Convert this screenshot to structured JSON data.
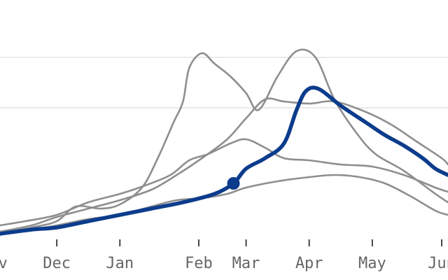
{
  "chart_data": {
    "type": "line",
    "x_unit": "month",
    "xlim": [
      10.1,
      17.2
    ],
    "ylim": [
      0,
      100
    ],
    "x_ticks": [
      {
        "x": 10,
        "label": "Nov"
      },
      {
        "x": 11,
        "label": "Dec"
      },
      {
        "x": 12,
        "label": "Jan"
      },
      {
        "x": 13.25,
        "label": "Feb"
      },
      {
        "x": 14.0,
        "label": "Mar"
      },
      {
        "x": 15.0,
        "label": "Apr"
      },
      {
        "x": 16.0,
        "label": "May"
      },
      {
        "x": 17.1,
        "label": "Jun"
      }
    ],
    "y_gridlines": [
      14,
      38
    ],
    "grid": true,
    "background_series": [
      {
        "points": [
          [
            10.1,
            98
          ],
          [
            10.6,
            95
          ],
          [
            11.0,
            92
          ],
          [
            11.3,
            85
          ],
          [
            11.7,
            86
          ],
          [
            12.0,
            84
          ],
          [
            12.35,
            76
          ],
          [
            12.6,
            62
          ],
          [
            12.85,
            45
          ],
          [
            13.0,
            35
          ],
          [
            13.1,
            19
          ],
          [
            13.3,
            12
          ],
          [
            13.5,
            17
          ],
          [
            13.75,
            23
          ],
          [
            14.0,
            31
          ],
          [
            14.2,
            39
          ],
          [
            14.5,
            23
          ],
          [
            14.8,
            11
          ],
          [
            15.1,
            14
          ],
          [
            15.4,
            34
          ],
          [
            15.75,
            50
          ],
          [
            16.05,
            60
          ],
          [
            16.5,
            68
          ],
          [
            17.0,
            79
          ],
          [
            17.2,
            83
          ]
        ],
        "color": "#8e8e8e"
      },
      {
        "points": [
          [
            10.1,
            94
          ],
          [
            10.5,
            92
          ],
          [
            11.0,
            89
          ],
          [
            11.5,
            83
          ],
          [
            12.0,
            79
          ],
          [
            12.4,
            75
          ],
          [
            12.8,
            70
          ],
          [
            13.1,
            63
          ],
          [
            13.4,
            60
          ],
          [
            13.75,
            55
          ],
          [
            14.0,
            53
          ],
          [
            14.3,
            57
          ],
          [
            14.6,
            62
          ],
          [
            15.0,
            63
          ],
          [
            15.5,
            65
          ],
          [
            16.0,
            66
          ],
          [
            16.5,
            70
          ],
          [
            17.0,
            76
          ],
          [
            17.2,
            78
          ]
        ],
        "color": "#8e8e8e"
      },
      {
        "points": [
          [
            10.1,
            97
          ],
          [
            10.6,
            94
          ],
          [
            11.0,
            90
          ],
          [
            11.5,
            86
          ],
          [
            12.0,
            82
          ],
          [
            12.5,
            77
          ],
          [
            12.9,
            70
          ],
          [
            13.3,
            62
          ],
          [
            13.7,
            53
          ],
          [
            14.0,
            43
          ],
          [
            14.3,
            34
          ],
          [
            14.6,
            35
          ],
          [
            15.0,
            36
          ],
          [
            15.4,
            35
          ],
          [
            15.9,
            40
          ],
          [
            16.3,
            46
          ],
          [
            16.7,
            54
          ],
          [
            17.1,
            62
          ],
          [
            17.2,
            65
          ]
        ],
        "color": "#8e8e8e"
      },
      {
        "points": [
          [
            10.1,
            98
          ],
          [
            10.6,
            96
          ],
          [
            11.0,
            94
          ],
          [
            11.5,
            91
          ],
          [
            12.0,
            89
          ],
          [
            12.5,
            85
          ],
          [
            12.9,
            82
          ],
          [
            13.3,
            81
          ],
          [
            13.7,
            79
          ],
          [
            14.0,
            76
          ],
          [
            14.5,
            73
          ],
          [
            15.0,
            71
          ],
          [
            15.4,
            70
          ],
          [
            15.8,
            71
          ],
          [
            16.2,
            74
          ],
          [
            16.6,
            80
          ],
          [
            17.0,
            87
          ],
          [
            17.2,
            89
          ]
        ],
        "color": "#8e8e8e"
      }
    ],
    "highlight_series": {
      "points": [
        [
          10.1,
          98
        ],
        [
          10.6,
          96
        ],
        [
          11.0,
          95
        ],
        [
          11.5,
          92
        ],
        [
          12.0,
          89
        ],
        [
          12.5,
          86
        ],
        [
          13.0,
          83
        ],
        [
          13.5,
          79
        ],
        [
          13.8,
          74
        ],
        [
          14.0,
          67
        ],
        [
          14.3,
          62
        ],
        [
          14.6,
          55
        ],
        [
          14.8,
          39
        ],
        [
          14.95,
          30
        ],
        [
          15.15,
          29
        ],
        [
          15.5,
          37
        ],
        [
          15.9,
          45
        ],
        [
          16.2,
          51
        ],
        [
          16.5,
          56
        ],
        [
          16.8,
          62
        ],
        [
          17.0,
          67
        ],
        [
          17.2,
          70
        ]
      ],
      "color": "#0c3c8c"
    },
    "highlight_marker": {
      "x": 13.8,
      "y": 74
    }
  }
}
